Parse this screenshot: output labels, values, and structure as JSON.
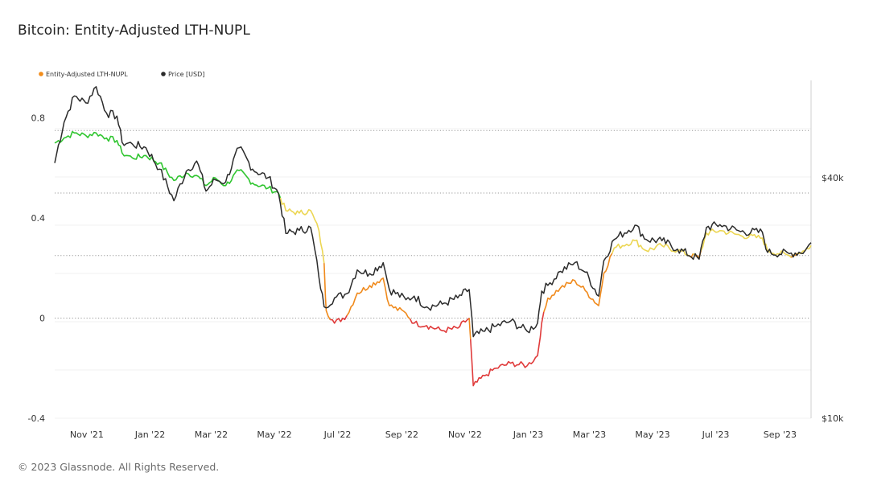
{
  "title": "Bitcoin: Entity-Adjusted LTH-NUPL",
  "footer": "© 2023 Glassnode. All Rights Reserved.",
  "colors": {
    "nupl_green": "#2fc52f",
    "nupl_yellow": "#ecd653",
    "nupl_orange": "#f08a1c",
    "nupl_red": "#e03b3b",
    "price": "#2b2b2b",
    "legend_nupl": "#f28c1a",
    "legend_price": "#2b2b2b"
  },
  "chart_data": {
    "type": "line",
    "title": "Bitcoin: Entity-Adjusted LTH-NUPL",
    "x_ticks": [
      "Nov '21",
      "Jan '22",
      "Mar '22",
      "May '22",
      "Jul '22",
      "Sep '22",
      "Nov '22",
      "Jan '23",
      "Mar '23",
      "May '23",
      "Jul '23",
      "Sep '23"
    ],
    "x_range": [
      "Oct '21",
      "Oct '23"
    ],
    "y_left": {
      "ticks": [
        "0.8",
        "0.4",
        "0",
        "-0.4"
      ],
      "range": [
        -0.4,
        0.95
      ]
    },
    "y_right": {
      "ticks": [
        "$40k",
        "$10k"
      ],
      "scale": "log",
      "range": [
        10000,
        70000
      ]
    },
    "grid": "dotted horizontal",
    "legend_position": "top-left",
    "series": [
      {
        "name": "Entity-Adjusted LTH-NUPL",
        "axis": "left",
        "color_bands": [
          {
            "from": 0.5,
            "color": "green"
          },
          {
            "from": 0.25,
            "to": 0.5,
            "color": "yellow"
          },
          {
            "from": 0.0,
            "to": 0.25,
            "color": "orange"
          },
          {
            "to": 0.0,
            "color": "red"
          }
        ],
        "points": [
          [
            "Oct 1 '21",
            0.7
          ],
          [
            "Oct 10 '21",
            0.72
          ],
          [
            "Oct 20 '21",
            0.74
          ],
          [
            "Oct 31 '21",
            0.73
          ],
          [
            "Nov 10 '21",
            0.74
          ],
          [
            "Nov 20 '21",
            0.72
          ],
          [
            "Nov 30 '21",
            0.71
          ],
          [
            "Dec 5 '21",
            0.66
          ],
          [
            "Dec 15 '21",
            0.64
          ],
          [
            "Dec 28 '21",
            0.65
          ],
          [
            "Jan 10 '22",
            0.62
          ],
          [
            "Jan 24 '22",
            0.55
          ],
          [
            "Feb 5 '22",
            0.58
          ],
          [
            "Feb 15 '22",
            0.57
          ],
          [
            "Feb 24 '22",
            0.53
          ],
          [
            "Mar 5 '22",
            0.56
          ],
          [
            "Mar 15 '22",
            0.53
          ],
          [
            "Mar 28 '22",
            0.59
          ],
          [
            "Apr 10 '22",
            0.54
          ],
          [
            "Apr 25 '22",
            0.52
          ],
          [
            "May 5 '22",
            0.5
          ],
          [
            "May 12 '22",
            0.43
          ],
          [
            "May 25 '22",
            0.42
          ],
          [
            "Jun 5 '22",
            0.43
          ],
          [
            "Jun 13 '22",
            0.35
          ],
          [
            "Jun 18 '22",
            0.22
          ],
          [
            "Jun 20 '22",
            0.03
          ],
          [
            "Jun 28 '22",
            -0.02
          ],
          [
            "Jul 10 '22",
            0.01
          ],
          [
            "Jul 20 '22",
            0.1
          ],
          [
            "Aug 1 '22",
            0.13
          ],
          [
            "Aug 14 '22",
            0.16
          ],
          [
            "Aug 20 '22",
            0.05
          ],
          [
            "Sep 5 '22",
            0.02
          ],
          [
            "Sep 13 '22",
            -0.02
          ],
          [
            "Sep 25 '22",
            -0.03
          ],
          [
            "Oct 10 '22",
            -0.05
          ],
          [
            "Oct 25 '22",
            -0.04
          ],
          [
            "Nov 5 '22",
            0.0
          ],
          [
            "Nov 9 '22",
            -0.27
          ],
          [
            "Nov 20 '22",
            -0.23
          ],
          [
            "Dec 1 '22",
            -0.2
          ],
          [
            "Dec 15 '22",
            -0.18
          ],
          [
            "Dec 31 '22",
            -0.19
          ],
          [
            "Jan 10 '23",
            -0.15
          ],
          [
            "Jan 14 '23",
            -0.02
          ],
          [
            "Jan 20 '23",
            0.08
          ],
          [
            "Feb 1 '23",
            0.12
          ],
          [
            "Feb 15 '23",
            0.15
          ],
          [
            "Feb 25 '23",
            0.11
          ],
          [
            "Mar 10 '23",
            0.05
          ],
          [
            "Mar 15 '23",
            0.18
          ],
          [
            "Mar 25 '23",
            0.28
          ],
          [
            "Apr 14 '23",
            0.31
          ],
          [
            "Apr 25 '23",
            0.27
          ],
          [
            "May 10 '23",
            0.29
          ],
          [
            "May 25 '23",
            0.27
          ],
          [
            "Jun 15 '23",
            0.24
          ],
          [
            "Jun 22 '23",
            0.34
          ],
          [
            "Jul 5 '23",
            0.35
          ],
          [
            "Jul 25 '23",
            0.33
          ],
          [
            "Aug 15 '23",
            0.32
          ],
          [
            "Aug 20 '23",
            0.27
          ],
          [
            "Sep 10 '23",
            0.25
          ],
          [
            "Sep 25 '23",
            0.27
          ],
          [
            "Oct 1 '23",
            0.29
          ]
        ]
      },
      {
        "name": "Price [USD]",
        "axis": "right",
        "points": [
          [
            "Oct 1 '21",
            43500
          ],
          [
            "Oct 10 '21",
            55000
          ],
          [
            "Oct 20 '21",
            64000
          ],
          [
            "Oct 31 '21",
            61500
          ],
          [
            "Nov 10 '21",
            67500
          ],
          [
            "Nov 20 '21",
            58000
          ],
          [
            "Nov 30 '21",
            57000
          ],
          [
            "Dec 5 '21",
            49000
          ],
          [
            "Dec 15 '21",
            48500
          ],
          [
            "Dec 28 '21",
            47500
          ],
          [
            "Jan 10 '22",
            42000
          ],
          [
            "Jan 24 '22",
            35000
          ],
          [
            "Feb 5 '22",
            41500
          ],
          [
            "Feb 15 '22",
            44000
          ],
          [
            "Feb 24 '22",
            37000
          ],
          [
            "Mar 5 '22",
            39500
          ],
          [
            "Mar 15 '22",
            39000
          ],
          [
            "Mar 28 '22",
            47500
          ],
          [
            "Apr 10 '22",
            42000
          ],
          [
            "Apr 25 '22",
            40000
          ],
          [
            "May 5 '22",
            36500
          ],
          [
            "May 12 '22",
            29000
          ],
          [
            "May 25 '22",
            29500
          ],
          [
            "Jun 5 '22",
            30000
          ],
          [
            "Jun 13 '22",
            22500
          ],
          [
            "Jun 18 '22",
            19000
          ],
          [
            "Jun 28 '22",
            20000
          ],
          [
            "Jul 10 '22",
            20500
          ],
          [
            "Jul 20 '22",
            23500
          ],
          [
            "Aug 1 '22",
            23000
          ],
          [
            "Aug 14 '22",
            24500
          ],
          [
            "Aug 20 '22",
            21000
          ],
          [
            "Sep 5 '22",
            19800
          ],
          [
            "Sep 13 '22",
            20200
          ],
          [
            "Sep 25 '22",
            19000
          ],
          [
            "Oct 10 '22",
            19300
          ],
          [
            "Oct 25 '22",
            20000
          ],
          [
            "Nov 5 '22",
            21000
          ],
          [
            "Nov 9 '22",
            16000
          ],
          [
            "Nov 20 '22",
            16500
          ],
          [
            "Dec 1 '22",
            17000
          ],
          [
            "Dec 15 '22",
            17500
          ],
          [
            "Dec 31 '22",
            16500
          ],
          [
            "Jan 10 '23",
            17300
          ],
          [
            "Jan 14 '23",
            20800
          ],
          [
            "Jan 20 '23",
            21500
          ],
          [
            "Feb 1 '23",
            23300
          ],
          [
            "Feb 15 '23",
            24500
          ],
          [
            "Feb 25 '23",
            23200
          ],
          [
            "Mar 10 '23",
            20200
          ],
          [
            "Mar 15 '23",
            24800
          ],
          [
            "Mar 25 '23",
            28000
          ],
          [
            "Apr 14 '23",
            30400
          ],
          [
            "Apr 25 '23",
            28000
          ],
          [
            "May 10 '23",
            27800
          ],
          [
            "May 25 '23",
            26500
          ],
          [
            "Jun 15 '23",
            25000
          ],
          [
            "Jun 22 '23",
            30000
          ],
          [
            "Jul 5 '23",
            30500
          ],
          [
            "Jul 25 '23",
            29300
          ],
          [
            "Aug 15 '23",
            29200
          ],
          [
            "Aug 20 '23",
            26000
          ],
          [
            "Sep 10 '23",
            25800
          ],
          [
            "Sep 25 '23",
            26200
          ],
          [
            "Oct 1 '23",
            27500
          ]
        ]
      }
    ]
  }
}
